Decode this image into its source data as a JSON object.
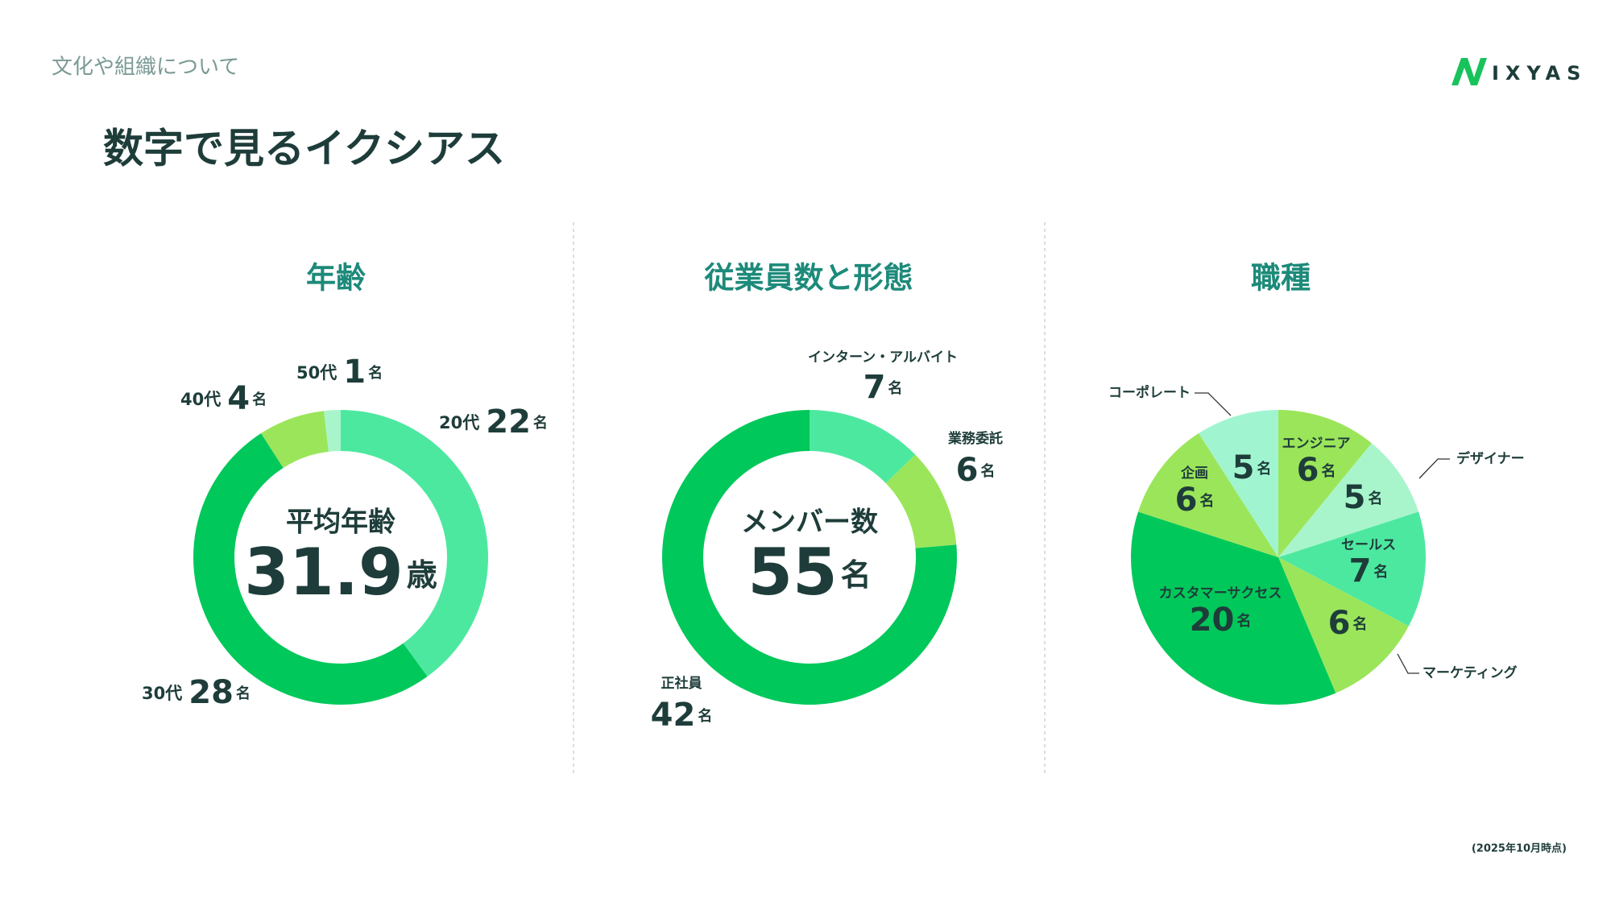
{
  "header": {
    "section": "文化や組織について",
    "title": "数字で見るイクシアス",
    "logo": "IXYAS",
    "note": "(2025年10月時点)"
  },
  "chart_data": [
    {
      "type": "donut",
      "title": "年齢",
      "categories": [
        "20代",
        "30代",
        "40代",
        "50代"
      ],
      "values": [
        22,
        28,
        4,
        1
      ],
      "colors": [
        "#4de8a0",
        "#00c85a",
        "#9be55a",
        "#a8f5cc"
      ],
      "unit": "名",
      "center_label": "平均年齢",
      "center_value": 31.9,
      "center_unit": "歳"
    },
    {
      "type": "donut",
      "title": "従業員数と形態",
      "categories": [
        "インターン・アルバイト",
        "業務委託",
        "正社員"
      ],
      "values": [
        7,
        6,
        42
      ],
      "colors": [
        "#4de8a0",
        "#9be55a",
        "#00c85a"
      ],
      "unit": "名",
      "center_label": "メンバー数",
      "center_value": 55,
      "center_unit": "名"
    },
    {
      "type": "pie",
      "title": "職種",
      "categories": [
        "エンジニア",
        "デザイナー",
        "セールス",
        "マーケティング",
        "カスタマーサクセス",
        "企画",
        "コーポレート"
      ],
      "values": [
        6,
        5,
        7,
        6,
        20,
        6,
        5
      ],
      "colors": [
        "#9be55a",
        "#a8f5cc",
        "#4de8a0",
        "#9be55a",
        "#00c85a",
        "#9be55a",
        "#a0f5d0"
      ],
      "unit": "名"
    }
  ]
}
